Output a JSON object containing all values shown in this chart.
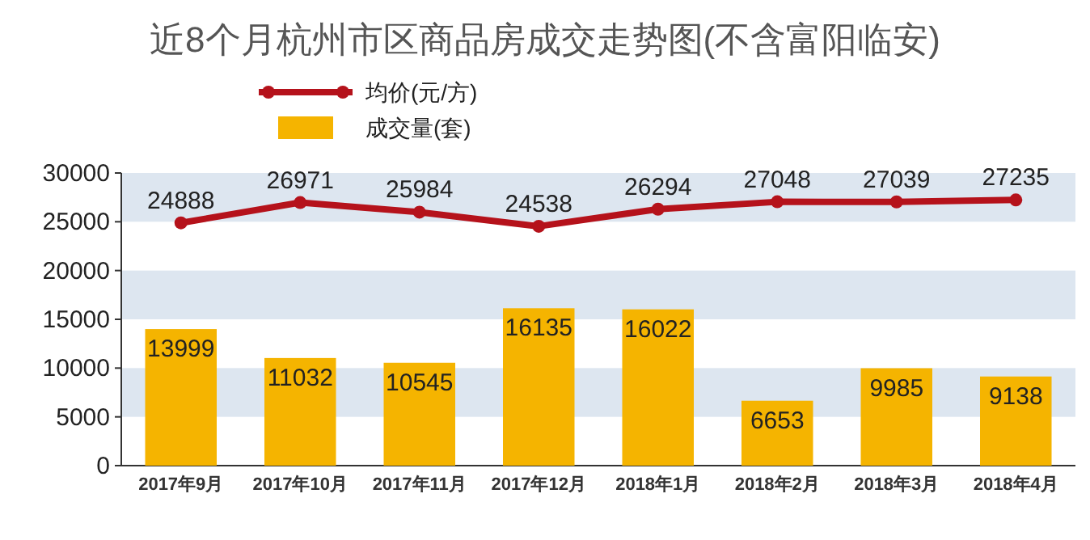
{
  "chart_data": {
    "type": "bar",
    "title": "近8个月杭州市区商品房成交走势图(不含富阳临安)",
    "categories": [
      "2017年9月",
      "2017年10月",
      "2017年11月",
      "2017年12月",
      "2018年1月",
      "2018年2月",
      "2018年3月",
      "2018年4月"
    ],
    "series": [
      {
        "name": "均价(元/方)",
        "type": "line",
        "color": "#b5121b",
        "marker": "circle",
        "values": [
          24888,
          26971,
          25984,
          24538,
          26294,
          27048,
          27039,
          27235
        ]
      },
      {
        "name": "成交量(套)",
        "color": "#f5b400",
        "values": [
          13999,
          11032,
          10545,
          16135,
          16022,
          6653,
          9985,
          9138
        ]
      }
    ],
    "ylim": [
      0,
      30000
    ],
    "yticks": [
      0,
      5000,
      10000,
      15000,
      20000,
      25000,
      30000
    ],
    "bands": [
      {
        "axis": "y",
        "from": 5000,
        "to": 10000,
        "color": "#dde6f0"
      },
      {
        "axis": "y",
        "from": 15000,
        "to": 20000,
        "color": "#dde6f0"
      },
      {
        "axis": "y",
        "from": 25000,
        "to": 30000,
        "color": "#dde6f0"
      }
    ],
    "data_labels": true,
    "legend": "top left"
  }
}
